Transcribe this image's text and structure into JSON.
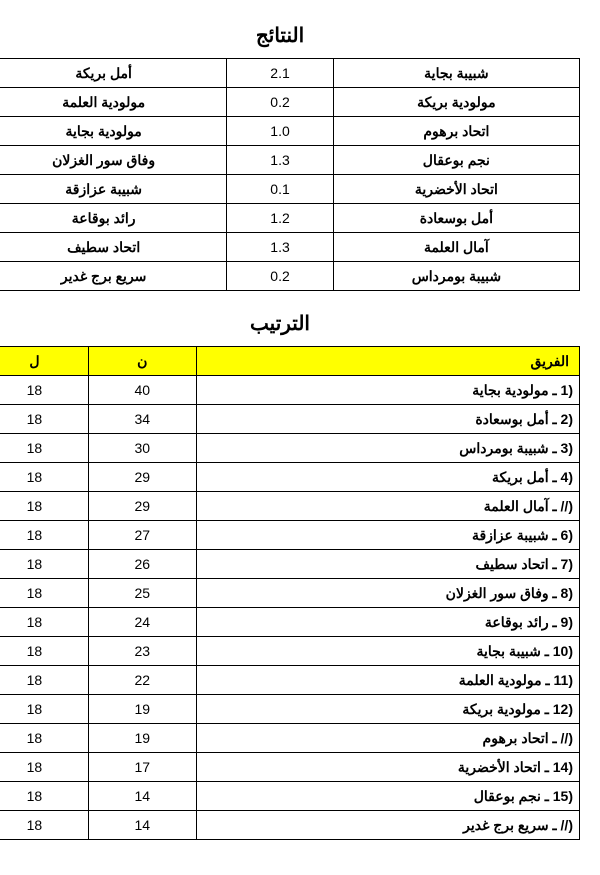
{
  "results": {
    "title": "النتائج",
    "rows": [
      {
        "home": "شبيبة بجاية",
        "score": "2.1",
        "away": "أمل بريكة"
      },
      {
        "home": "مولودية بريكة",
        "score": "0.2",
        "away": "مولودية العلمة"
      },
      {
        "home": "اتحاد برهوم",
        "score": "1.0",
        "away": "مولودية بجاية"
      },
      {
        "home": "نجم بوعقال",
        "score": "1.3",
        "away": "وفاق سور الغزلان"
      },
      {
        "home": "اتحاد الأخضرية",
        "score": "0.1",
        "away": "شبيبة عزازقة"
      },
      {
        "home": "أمل بوسعادة",
        "score": "1.2",
        "away": "رائد بوقاعة"
      },
      {
        "home": "آمال العلمة",
        "score": "1.3",
        "away": "اتحاد سطيف"
      },
      {
        "home": "شبيبة بومرداس",
        "score": "0.2",
        "away": "سريع برج غدير"
      }
    ]
  },
  "standings": {
    "title": "الترتيب",
    "headers": {
      "team": "الفريق",
      "n": "ن",
      "l": "ل"
    },
    "rows": [
      {
        "rank": "1)",
        "team": "ـ مولودية بجاية",
        "n": "40",
        "l": "18"
      },
      {
        "rank": "2)",
        "team": "ـ أمل بوسعادة",
        "n": "34",
        "l": "18"
      },
      {
        "rank": "3)",
        "team": "ـ شبيبة بومرداس",
        "n": "30",
        "l": "18"
      },
      {
        "rank": "4)",
        "team": "ـ أمل بريكة",
        "n": "29",
        "l": "18"
      },
      {
        "rank": "//)",
        "team": "ـ آمال العلمة",
        "n": "29",
        "l": "18"
      },
      {
        "rank": "6)",
        "team": "ـ شبيبة عزازقة",
        "n": "27",
        "l": "18"
      },
      {
        "rank": "7)",
        "team": "ـ اتحاد سطيف",
        "n": "26",
        "l": "18"
      },
      {
        "rank": "8)",
        "team": "ـ وفاق سور الغزلان",
        "n": "25",
        "l": "18"
      },
      {
        "rank": "9)",
        "team": "ـ رائد بوقاعة",
        "n": "24",
        "l": "18"
      },
      {
        "rank": "10)",
        "team": "ـ شبيبة بجاية",
        "n": "23",
        "l": "18"
      },
      {
        "rank": "11)",
        "team": "ـ مولودية العلمة",
        "n": "22",
        "l": "18"
      },
      {
        "rank": "12)",
        "team": "ـ مولودية بريكة",
        "n": "19",
        "l": "18"
      },
      {
        "rank": "//)",
        "team": "ـ اتحاد برهوم",
        "n": "19",
        "l": "18"
      },
      {
        "rank": "14)",
        "team": "ـ اتحاد الأخضرية",
        "n": "17",
        "l": "18"
      },
      {
        "rank": "15)",
        "team": "ـ نجم بوعقال",
        "n": "14",
        "l": "18"
      },
      {
        "rank": "//)",
        "team": "ـ سريع برج غدير",
        "n": "14",
        "l": "18"
      }
    ]
  },
  "colors": {
    "header_bg": "#ffff00",
    "border": "#000000",
    "background": "#ffffff"
  }
}
